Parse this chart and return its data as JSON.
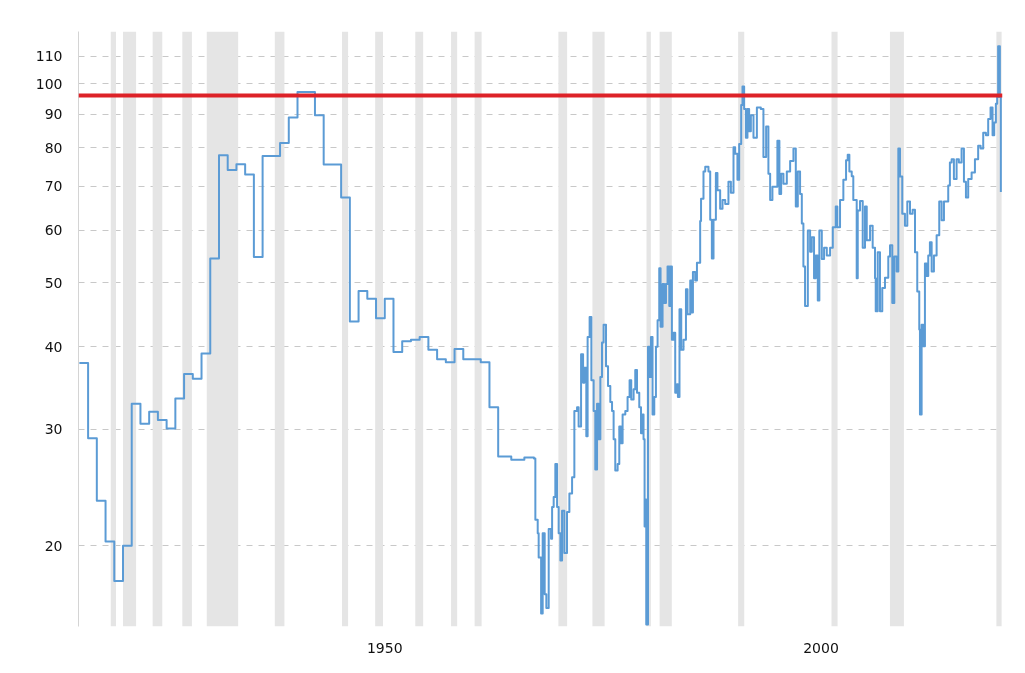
{
  "chart_data": {
    "type": "step",
    "xlim": [
      1914.9,
      2020.8
    ],
    "ylim": [
      15.1,
      120
    ],
    "log": true,
    "grid": "y",
    "xticks": [
      1950,
      2000
    ],
    "yticks": [
      20,
      30,
      40,
      50,
      60,
      70,
      80,
      90,
      100,
      110
    ],
    "bands": [
      {
        "axis": "x",
        "from": 1918.6,
        "to": 1919.2,
        "color": "#e5e5e5"
      },
      {
        "axis": "x",
        "from": 1920.0,
        "to": 1921.5,
        "color": "#e5e5e5"
      },
      {
        "axis": "x",
        "from": 1923.4,
        "to": 1924.5,
        "color": "#e5e5e5"
      },
      {
        "axis": "x",
        "from": 1926.8,
        "to": 1927.9,
        "color": "#e5e5e5"
      },
      {
        "axis": "x",
        "from": 1929.6,
        "to": 1933.2,
        "color": "#e5e5e5"
      },
      {
        "axis": "x",
        "from": 1937.4,
        "to": 1938.5,
        "color": "#e5e5e5"
      },
      {
        "axis": "x",
        "from": 1945.1,
        "to": 1945.8,
        "color": "#e5e5e5"
      },
      {
        "axis": "x",
        "from": 1948.9,
        "to": 1949.8,
        "color": "#e5e5e5"
      },
      {
        "axis": "x",
        "from": 1953.5,
        "to": 1954.4,
        "color": "#e5e5e5"
      },
      {
        "axis": "x",
        "from": 1957.6,
        "to": 1958.3,
        "color": "#e5e5e5"
      },
      {
        "axis": "x",
        "from": 1960.3,
        "to": 1961.1,
        "color": "#e5e5e5"
      },
      {
        "axis": "x",
        "from": 1969.9,
        "to": 1970.9,
        "color": "#e5e5e5"
      },
      {
        "axis": "x",
        "from": 1973.8,
        "to": 1975.2,
        "color": "#e5e5e5"
      },
      {
        "axis": "x",
        "from": 1980.0,
        "to": 1980.5,
        "color": "#e5e5e5"
      },
      {
        "axis": "x",
        "from": 1981.5,
        "to": 1982.9,
        "color": "#e5e5e5"
      },
      {
        "axis": "x",
        "from": 1990.5,
        "to": 1991.2,
        "color": "#e5e5e5"
      },
      {
        "axis": "x",
        "from": 2001.2,
        "to": 2001.9,
        "color": "#e5e5e5"
      },
      {
        "axis": "x",
        "from": 2007.9,
        "to": 2009.5,
        "color": "#e5e5e5"
      },
      {
        "axis": "x",
        "from": 2020.1,
        "to": 2020.7,
        "color": "#e5e5e5"
      }
    ],
    "ref_lines": [
      {
        "axis": "y",
        "value": 96,
        "color": "#dd2228"
      }
    ],
    "series": [
      {
        "color": "#5b9bd5",
        "x": [
          1915,
          1916,
          1917,
          1918,
          1919,
          1920,
          1921,
          1922,
          1923,
          1924,
          1925,
          1926,
          1927,
          1928,
          1929,
          1930,
          1931,
          1932,
          1933,
          1934,
          1935,
          1936,
          1937,
          1938,
          1939,
          1940,
          1941,
          1942,
          1943,
          1944,
          1945,
          1946,
          1947,
          1948,
          1949,
          1950,
          1951,
          1952,
          1953,
          1954,
          1955,
          1956,
          1957,
          1958,
          1959,
          1960,
          1961,
          1962,
          1963,
          1964.5,
          1966,
          1967.1,
          1967.26,
          1967.53,
          1967.64,
          1967.92,
          1968.1,
          1968.33,
          1968.52,
          1968.79,
          1969.06,
          1969.18,
          1969.36,
          1969.55,
          1969.75,
          1969.93,
          1970.13,
          1970.32,
          1970.58,
          1970.89,
          1971.16,
          1971.47,
          1971.73,
          1972.04,
          1972.22,
          1972.5,
          1972.73,
          1972.87,
          1973.1,
          1973.25,
          1973.48,
          1973.68,
          1973.94,
          1974.13,
          1974.33,
          1974.51,
          1974.71,
          1974.9,
          1975.08,
          1975.36,
          1975.59,
          1975.85,
          1976.05,
          1976.23,
          1976.42,
          1976.69,
          1976.88,
          1977.08,
          1977.26,
          1977.57,
          1977.83,
          1978.06,
          1978.25,
          1978.52,
          1978.71,
          1978.91,
          1979.17,
          1979.37,
          1979.55,
          1979.66,
          1979.78,
          1979.86,
          1979.97,
          1980.17,
          1980.35,
          1980.51,
          1980.69,
          1980.89,
          1981.08,
          1981.27,
          1981.46,
          1981.61,
          1981.84,
          1982.03,
          1982.23,
          1982.41,
          1982.61,
          1982.72,
          1982.91,
          1983.1,
          1983.29,
          1983.49,
          1983.6,
          1983.78,
          1983.98,
          1984.24,
          1984.52,
          1984.7,
          1985.01,
          1985.2,
          1985.32,
          1985.58,
          1985.78,
          1986.15,
          1986.25,
          1986.53,
          1986.73,
          1987.1,
          1987.3,
          1987.49,
          1987.68,
          1987.95,
          1988.13,
          1988.44,
          1988.71,
          1989.02,
          1989.39,
          1989.67,
          1989.97,
          1990.16,
          1990.42,
          1990.62,
          1990.85,
          1991.0,
          1991.19,
          1991.39,
          1991.57,
          1991.76,
          1991.96,
          1992.26,
          1992.65,
          1993.1,
          1993.4,
          1993.71,
          1993.97,
          1994.17,
          1994.43,
          1994.74,
          1995.0,
          1995.23,
          1995.43,
          1995.69,
          1996.08,
          1996.46,
          1996.84,
          1997.11,
          1997.34,
          1997.6,
          1997.8,
          1997.98,
          1998.17,
          1998.49,
          1998.75,
          1998.94,
          1999.2,
          1999.4,
          1999.63,
          1999.81,
          2000.09,
          2000.35,
          2000.66,
          2001.04,
          2001.35,
          2001.69,
          2001.87,
          2002.18,
          2002.56,
          2002.87,
          2003.06,
          2003.25,
          2003.52,
          2003.7,
          2004.09,
          2004.21,
          2004.47,
          2004.78,
          2005.04,
          2005.24,
          2005.62,
          2005.92,
          2006.19,
          2006.27,
          2006.5,
          2006.76,
          2007.02,
          2007.33,
          2007.71,
          2007.91,
          2008.17,
          2008.4,
          2008.67,
          2008.86,
          2009.05,
          2009.31,
          2009.62,
          2009.89,
          2010.2,
          2010.5,
          2010.77,
          2011.03,
          2011.26,
          2011.34,
          2011.53,
          2011.72,
          2011.91,
          2012.11,
          2012.29,
          2012.48,
          2012.68,
          2012.94,
          2013.25,
          2013.55,
          2013.82,
          2014.09,
          2014.4,
          2014.58,
          2014.77,
          2014.97,
          2015.23,
          2015.54,
          2015.8,
          2016.11,
          2016.38,
          2016.61,
          2016.87,
          2017.26,
          2017.64,
          2018.01,
          2018.29,
          2018.59,
          2018.9,
          2019.16,
          2019.43,
          2019.66,
          2019.85,
          2020.04,
          2020.19,
          2020.3,
          2020.5,
          2020.61
        ],
        "values": [
          37.8,
          29.1,
          23.4,
          20.3,
          17.7,
          20.0,
          32.8,
          30.6,
          31.9,
          31.0,
          30.1,
          33.4,
          36.4,
          35.8,
          39.1,
          54.4,
          78.0,
          74.1,
          75.6,
          72.9,
          54.7,
          77.8,
          77.8,
          81.4,
          88.9,
          97.2,
          97.2,
          89.6,
          75.5,
          75.5,
          67.3,
          43.7,
          48.6,
          47.3,
          44.2,
          47.3,
          39.3,
          40.8,
          41.0,
          41.4,
          39.6,
          38.3,
          37.9,
          39.7,
          38.3,
          38.3,
          37.9,
          32.4,
          27.3,
          27.0,
          27.2,
          27.1,
          21.9,
          20.9,
          19.2,
          15.8,
          20.9,
          16.9,
          16.1,
          21.2,
          20.5,
          22.9,
          23.7,
          26.6,
          22.9,
          20.9,
          19.0,
          22.6,
          19.5,
          22.5,
          24.0,
          25.4,
          32.0,
          32.4,
          30.3,
          39.0,
          35.3,
          37.2,
          29.3,
          41.4,
          44.4,
          35.6,
          32.0,
          26.1,
          32.8,
          29.0,
          36.0,
          40.6,
          43.2,
          37.4,
          34.9,
          33.0,
          32.0,
          29.0,
          26.0,
          26.6,
          30.3,
          28.6,
          31.6,
          32.0,
          33.6,
          35.6,
          33.3,
          34.5,
          36.9,
          34.1,
          32.4,
          29.6,
          31.6,
          29.0,
          21.4,
          23.5,
          15.2,
          40.0,
          36.0,
          41.4,
          31.6,
          33.6,
          40.0,
          43.9,
          52.6,
          42.9,
          49.8,
          46.6,
          49.8,
          52.9,
          46.1,
          52.9,
          41.0,
          42.0,
          34.1,
          35.1,
          33.6,
          45.6,
          39.6,
          41.0,
          48.9,
          44.8,
          50.4,
          45.1,
          51.9,
          50.4,
          53.6,
          62.0,
          67.0,
          73.7,
          74.9,
          73.7,
          62.3,
          54.4,
          62.3,
          73.3,
          69.0,
          64.7,
          66.7,
          65.8,
          71.1,
          68.4,
          80.2,
          78.4,
          71.6,
          81.1,
          92.9,
          99.1,
          91.6,
          82.9,
          91.6,
          84.8,
          89.6,
          82.9,
          92.1,
          91.6,
          77.5,
          86.2,
          73.1,
          66.7,
          69.9,
          69.9,
          82.0,
          68.1,
          73.1,
          70.6,
          73.7,
          76.4,
          79.8,
          65.2,
          73.7,
          68.1,
          61.5,
          52.9,
          46.1,
          60.0,
          55.7,
          58.6,
          50.8,
          55.0,
          47.0,
          60.0,
          54.3,
          56.5,
          55.0,
          56.5,
          60.7,
          65.2,
          60.7,
          66.7,
          71.6,
          76.6,
          78.1,
          73.7,
          72.5,
          66.7,
          50.8,
          64.3,
          66.5,
          56.5,
          65.2,
          58.0,
          61.0,
          56.5,
          50.8,
          45.3,
          55.6,
          45.3,
          49.1,
          50.9,
          54.8,
          57.0,
          46.6,
          54.8,
          52.0,
          79.8,
          72.4,
          63.6,
          61.0,
          66.4,
          63.6,
          64.5,
          55.6,
          48.5,
          42.5,
          31.6,
          43.2,
          40.1,
          53.5,
          51.2,
          55.0,
          57.6,
          52.0,
          55.0,
          59.0,
          66.4,
          62.2,
          66.4,
          66.4,
          70.2,
          76.0,
          76.9,
          71.8,
          76.9,
          76.0,
          79.8,
          71.1,
          67.3,
          71.8,
          73.4,
          76.9,
          80.6,
          79.8,
          84.3,
          83.6,
          88.5,
          92.1,
          83.6,
          87.4,
          93.3,
          95.5,
          114,
          95.5,
          68.6
        ]
      }
    ]
  }
}
